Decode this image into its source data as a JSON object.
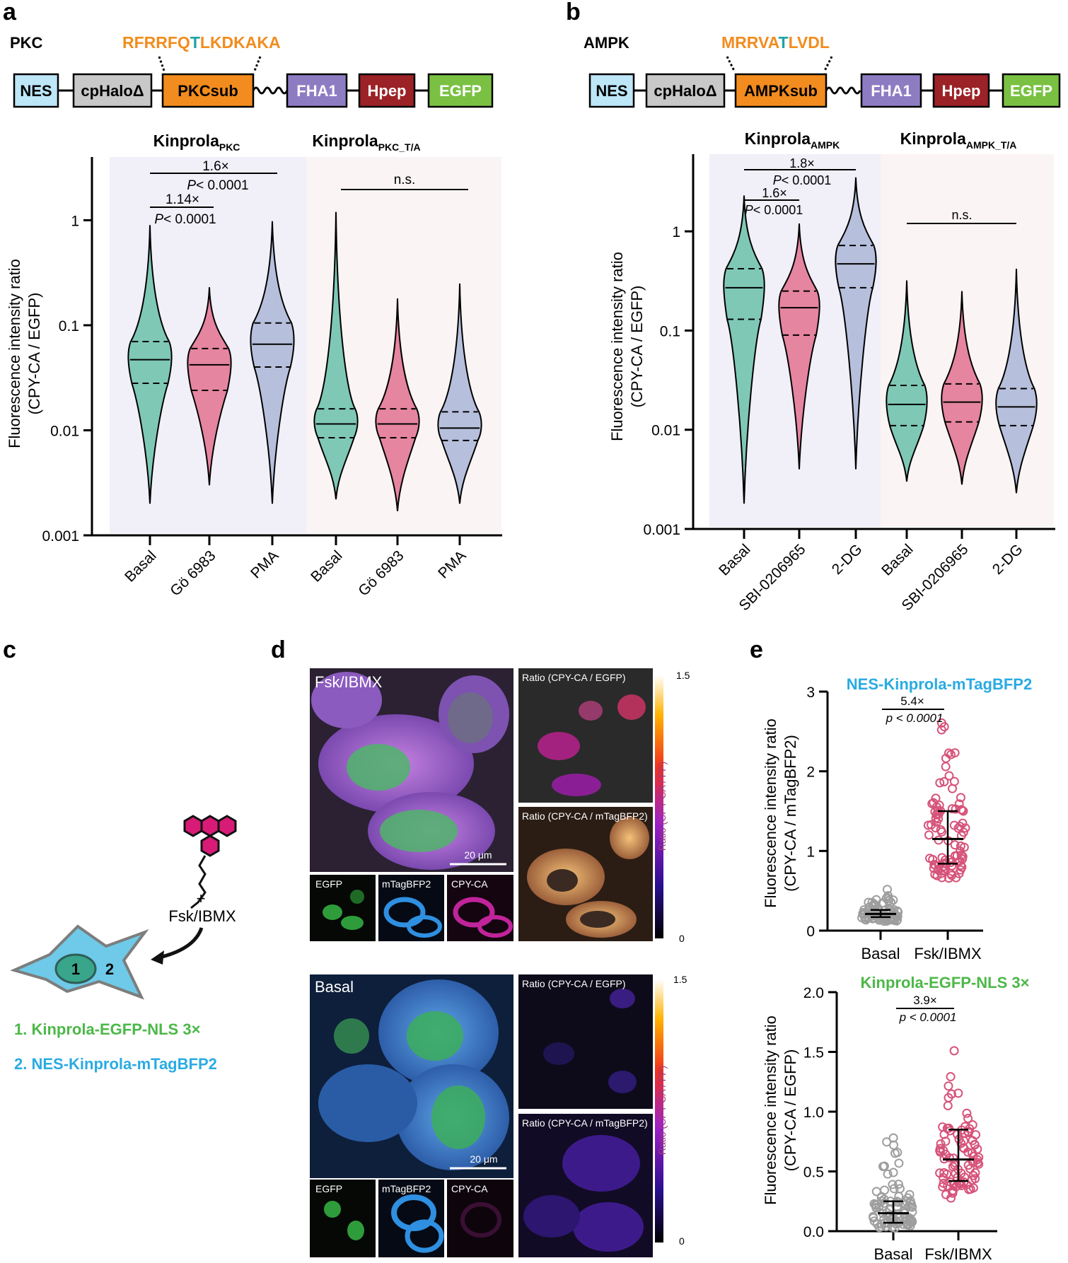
{
  "panels": {
    "a": "a",
    "b": "b",
    "c": "c",
    "d": "d",
    "e": "e"
  },
  "a": {
    "kinase": "PKC",
    "sequence_before": "RFRRFQ",
    "sequence_site": "T",
    "sequence_after": "LKDKAKA",
    "blocks": [
      "NES",
      "cpHaloΔ",
      "PKCsub",
      "FHA1",
      "Hpep",
      "EGFP"
    ],
    "group1_main": "Kinprola",
    "group1_sub": "PKC",
    "group2_main": "Kinprola",
    "group2_sub": "PKC_T/A",
    "stat1_fold": "1.6×",
    "stat1_p": "< 0.0001",
    "stat2_fold": "1.14×",
    "stat2_p": "< 0.0001",
    "stat3": "n.s.",
    "p_letter": "P",
    "ylabel1": "Fluorescence intensity ratio",
    "ylabel2": "(CPY-CA / EGFP)",
    "yticks": [
      "1",
      "0.1",
      "0.01",
      "0.001"
    ],
    "xticks": [
      "Basal",
      "Gö 6983",
      "PMA",
      "Basal",
      "Gö 6983",
      "PMA"
    ]
  },
  "b": {
    "kinase": "AMPK",
    "sequence_before": "MRRVA",
    "sequence_site": "T",
    "sequence_after": "LVDL",
    "blocks": [
      "NES",
      "cpHaloΔ",
      "AMPKsub",
      "FHA1",
      "Hpep",
      "EGFP"
    ],
    "group1_main": "Kinprola",
    "group1_sub": "AMPK",
    "group2_main": "Kinprola",
    "group2_sub": "AMPK_T/A",
    "stat1_fold": "1.8×",
    "stat1_p": "< 0.0001",
    "stat2_fold": "1.6×",
    "stat2_p": "< 0.0001",
    "stat3": "n.s.",
    "p_letter": "P",
    "ylabel1": "Fluorescence intensity ratio",
    "ylabel2": "(CPY-CA / EGFP)",
    "yticks": [
      "1",
      "0.1",
      "0.01",
      "0.001"
    ],
    "xticks": [
      "Basal",
      "SBI-0206965",
      "2-DG",
      "Basal",
      "SBI-0206965",
      "2-DG"
    ]
  },
  "c": {
    "plus": "+",
    "treatment": "Fsk/IBMX",
    "compartment1": "1",
    "compartment2": "2",
    "legend1": "1. Kinprola-EGFP-NLS 3×",
    "legend2": "2. NES-Kinprola-mTagBFP2"
  },
  "d": {
    "top_condition": "Fsk/IBMX",
    "bottom_condition": "Basal",
    "ratio_egfp": "Ratio (CPY-CA / EGFP)",
    "ratio_bfp": "Ratio (CPY-CA / mTagBFP2)",
    "scalebar": "20 μm",
    "ch_egfp": "EGFP",
    "ch_bfp": "mTagBFP2",
    "ch_cpy": "CPY-CA",
    "cbar_max": "1.5",
    "cbar_min": "0",
    "cbar_label": "Ratio (CPY-CA / FP)"
  },
  "e": {
    "top_title": "NES-Kinprola-mTagBFP2",
    "top_fold": "5.4×",
    "top_p": "p < 0.0001",
    "top_ylabel1": "Fluorescence intensity ratio",
    "top_ylabel2": "(CPY-CA / mTagBFP2)",
    "top_yticks": [
      "3",
      "2",
      "1",
      "0"
    ],
    "bottom_title": "Kinprola-EGFP-NLS 3×",
    "bottom_fold": "3.9×",
    "bottom_p": "p < 0.0001",
    "bottom_ylabel1": "Fluorescence intensity ratio",
    "bottom_ylabel2": "(CPY-CA / EGFP)",
    "bottom_yticks": [
      "2.0",
      "1.5",
      "1.0",
      "0.5",
      "0.0"
    ],
    "xticks": [
      "Basal",
      "Fsk/IBMX"
    ]
  },
  "colors": {
    "orange": "#f28c1e",
    "teal": "#1fa3a3",
    "mint": "#7fc8b6",
    "pink": "#e5859f",
    "lavender": "#b6c0dc",
    "cyan_text": "#29abe2",
    "green_text": "#4cb848",
    "magenta": "#d81b77",
    "nes": "#bde6f7",
    "cphalo": "#c8c8c8",
    "fha1": "#8e7cc3",
    "hpep": "#9b2226",
    "egfp": "#7ac143",
    "bg_purple": "#f1eff7",
    "bg_pink": "#fbf4f4"
  },
  "chart_data": [
    {
      "type": "violin",
      "panel": "a",
      "title": "",
      "ylabel": "Fluorescence intensity ratio (CPY-CA / EGFP)",
      "yscale": "log",
      "ylim": [
        0.001,
        4
      ],
      "categories": [
        "Basal",
        "Gö 6983",
        "PMA",
        "Basal",
        "Gö 6983",
        "PMA"
      ],
      "groups": [
        "Kinprola PKC",
        "Kinprola PKC",
        "Kinprola PKC",
        "Kinprola PKC_T/A",
        "Kinprola PKC_T/A",
        "Kinprola PKC_T/A"
      ],
      "median": [
        0.047,
        0.042,
        0.066,
        0.0115,
        0.0115,
        0.0105
      ],
      "q1": [
        0.028,
        0.024,
        0.04,
        0.0085,
        0.0085,
        0.008
      ],
      "q3": [
        0.07,
        0.06,
        0.105,
        0.016,
        0.016,
        0.015
      ],
      "min": [
        0.002,
        0.003,
        0.002,
        0.0022,
        0.0017,
        0.002
      ],
      "max": [
        0.9,
        0.23,
        0.98,
        1.2,
        0.18,
        0.25
      ]
    },
    {
      "type": "violin",
      "panel": "b",
      "title": "",
      "ylabel": "Fluorescence intensity ratio (CPY-CA / EGFP)",
      "yscale": "log",
      "ylim": [
        0.001,
        6
      ],
      "categories": [
        "Basal",
        "SBI-0206965",
        "2-DG",
        "Basal",
        "SBI-0206965",
        "2-DG"
      ],
      "groups": [
        "Kinprola AMPK",
        "Kinprola AMPK",
        "Kinprola AMPK",
        "Kinprola AMPK_T/A",
        "Kinprola AMPK_T/A",
        "Kinprola AMPK_T/A"
      ],
      "median": [
        0.27,
        0.17,
        0.47,
        0.018,
        0.019,
        0.017
      ],
      "q1": [
        0.13,
        0.09,
        0.27,
        0.011,
        0.012,
        0.011
      ],
      "q3": [
        0.42,
        0.25,
        0.72,
        0.028,
        0.029,
        0.026
      ],
      "min": [
        0.0018,
        0.004,
        0.004,
        0.003,
        0.0028,
        0.0023
      ],
      "max": [
        2.3,
        1.2,
        3.5,
        0.32,
        0.25,
        0.42
      ]
    },
    {
      "type": "scatter",
      "panel": "e-top",
      "title": "NES-Kinprola-mTagBFP2",
      "ylabel": "Fluorescence intensity ratio (CPY-CA / mTagBFP2)",
      "ylim": [
        0,
        3
      ],
      "categories": [
        "Basal",
        "Fsk/IBMX"
      ],
      "median": [
        0.21,
        1.15
      ],
      "q1": [
        0.17,
        0.84
      ],
      "q3": [
        0.26,
        1.5
      ],
      "max": [
        0.52,
        2.65
      ],
      "min": [
        0.1,
        0.62
      ]
    },
    {
      "type": "scatter",
      "panel": "e-bottom",
      "title": "Kinprola-EGFP-NLS 3×",
      "ylabel": "Fluorescence intensity ratio (CPY-CA / EGFP)",
      "ylim": [
        0,
        2
      ],
      "categories": [
        "Basal",
        "Fsk/IBMX"
      ],
      "median": [
        0.15,
        0.6
      ],
      "q1": [
        0.07,
        0.42
      ],
      "q3": [
        0.25,
        0.85
      ],
      "max": [
        0.8,
        1.65
      ],
      "min": [
        0.01,
        0.23
      ]
    }
  ]
}
